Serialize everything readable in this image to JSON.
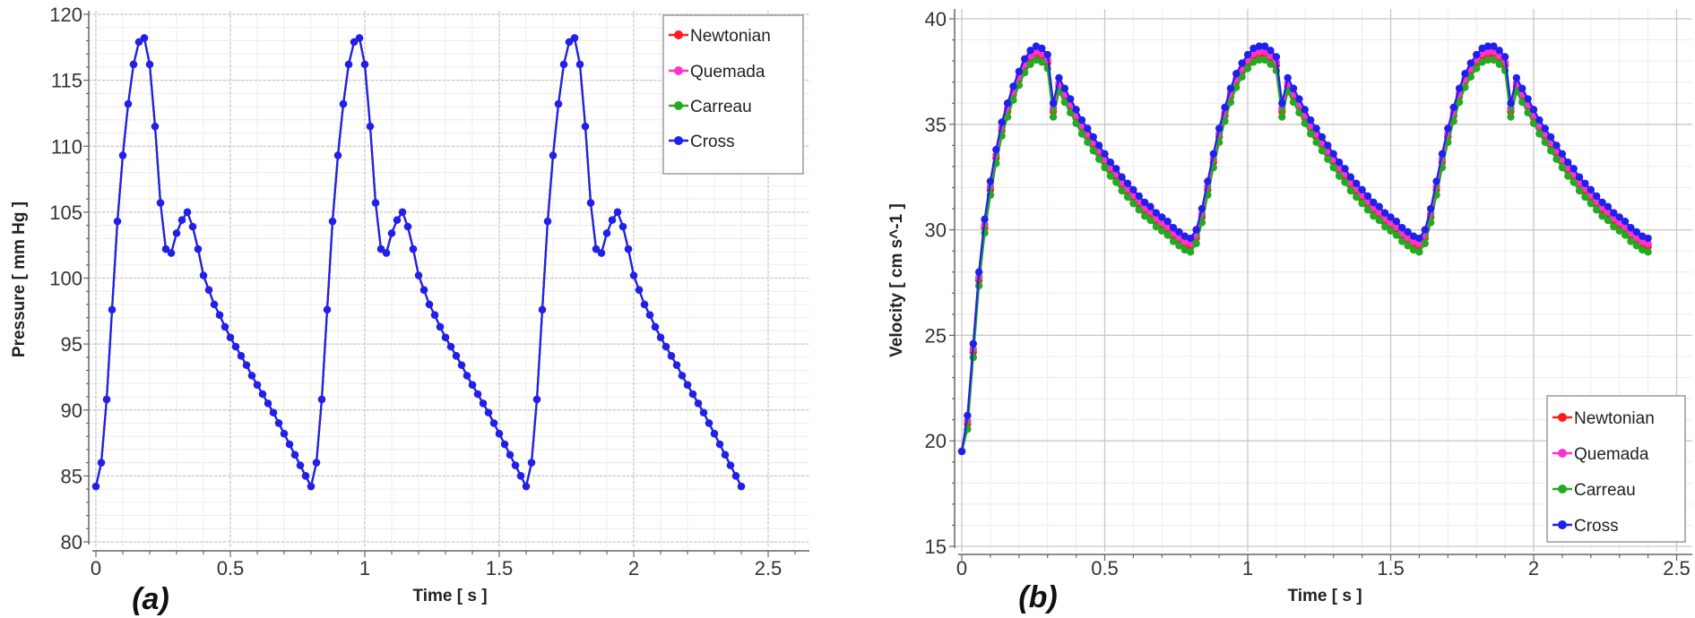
{
  "chart_data": [
    {
      "type": "line",
      "panel_label": "(a)",
      "xlabel": "Time [ s ]",
      "ylabel": "Pressure [ mm Hg ]",
      "xlim": [
        0,
        2.65
      ],
      "ylim": [
        80,
        120
      ],
      "xticks": [
        "0",
        "0.5",
        "1",
        "1.5",
        "2",
        "2.5"
      ],
      "xtick_values": [
        0,
        0.5,
        1,
        1.5,
        2,
        2.5
      ],
      "yticks": [
        "80",
        "85",
        "90",
        "95",
        "100",
        "105",
        "110",
        "115",
        "120"
      ],
      "ytick_values": [
        80,
        85,
        90,
        95,
        100,
        105,
        110,
        115,
        120
      ],
      "grid": true,
      "legend_position": "top-right",
      "time_step": 0.02,
      "period": 0.8,
      "n_cycles": 3,
      "first_cycle": [
        84.2,
        86.0,
        90.8,
        97.6,
        104.3,
        109.3,
        113.2,
        116.2,
        117.9,
        118.2,
        116.2,
        111.5,
        105.7,
        102.2,
        101.9,
        103.4,
        104.4,
        105.0,
        103.9,
        102.2,
        100.2,
        99.1,
        98.0,
        97.2,
        96.3,
        95.5,
        94.8,
        94.1,
        93.4,
        92.6,
        91.9,
        91.2,
        90.5,
        89.8,
        89.0,
        88.2,
        87.4,
        86.6,
        85.8,
        85.0,
        84.2
      ],
      "cycle": [
        84.2,
        86.0,
        90.8,
        97.6,
        104.3,
        109.3,
        113.2,
        116.2,
        117.9,
        118.2,
        116.2,
        111.5,
        105.7,
        102.2,
        101.9,
        103.4,
        104.4,
        105.0,
        103.9,
        102.2,
        100.2,
        99.1,
        98.0,
        97.2,
        96.3,
        95.5,
        94.8,
        94.1,
        93.4,
        92.6,
        91.9,
        91.2,
        90.5,
        89.8,
        89.0,
        88.2,
        87.4,
        86.6,
        85.8,
        85.0,
        84.2
      ],
      "series": [
        {
          "name": "Newtonian",
          "color": "#ff1a1a",
          "offset": 0
        },
        {
          "name": "Quemada",
          "color": "#ff33cc",
          "offset": 0
        },
        {
          "name": "Carreau",
          "color": "#22aa22",
          "offset": 0
        },
        {
          "name": "Cross",
          "color": "#2020ee",
          "offset": 0
        }
      ]
    },
    {
      "type": "line",
      "panel_label": "(b)",
      "xlabel": "Time [ s ]",
      "ylabel": "Velocity [ cm s^-1 ]",
      "xlim": [
        0,
        2.55
      ],
      "ylim": [
        15,
        40
      ],
      "xticks": [
        "0",
        "0.5",
        "1",
        "1.5",
        "2",
        "2.5"
      ],
      "xtick_values": [
        0,
        0.5,
        1,
        1.5,
        2,
        2.5
      ],
      "yticks": [
        "15",
        "20",
        "25",
        "30",
        "35",
        "40"
      ],
      "ytick_values": [
        15,
        20,
        25,
        30,
        35,
        40
      ],
      "grid": true,
      "legend_position": "bottom-right",
      "time_step": 0.02,
      "period": 0.8,
      "n_cycles": 3,
      "first_cycle": [
        19.5,
        21.2,
        24.6,
        28.0,
        30.5,
        32.3,
        33.8,
        35.1,
        36.0,
        36.8,
        37.5,
        38.1,
        38.5,
        38.7,
        38.6,
        38.3,
        36.0,
        37.2,
        36.7,
        36.2,
        35.7,
        35.2,
        34.8,
        34.4,
        34.0,
        33.6,
        33.2,
        32.9,
        32.5,
        32.2,
        31.9,
        31.6,
        31.3,
        31.1,
        30.8,
        30.6,
        30.4,
        30.1,
        29.9,
        29.7,
        29.6
      ],
      "cycle": [
        29.6,
        30.0,
        31.0,
        32.3,
        33.6,
        34.8,
        35.8,
        36.7,
        37.4,
        37.9,
        38.3,
        38.6,
        38.7,
        38.7,
        38.5,
        38.2,
        36.0,
        37.2,
        36.7,
        36.2,
        35.7,
        35.2,
        34.8,
        34.4,
        34.0,
        33.6,
        33.2,
        32.9,
        32.5,
        32.2,
        31.9,
        31.6,
        31.3,
        31.1,
        30.8,
        30.6,
        30.4,
        30.1,
        29.9,
        29.7,
        29.6
      ],
      "series": [
        {
          "name": "Newtonian",
          "color": "#ff1a1a",
          "offset": -0.4
        },
        {
          "name": "Quemada",
          "color": "#ff33cc",
          "offset": -0.25
        },
        {
          "name": "Carreau",
          "color": "#22aa22",
          "offset": -0.65
        },
        {
          "name": "Cross",
          "color": "#2020ee",
          "offset": 0
        }
      ]
    }
  ]
}
